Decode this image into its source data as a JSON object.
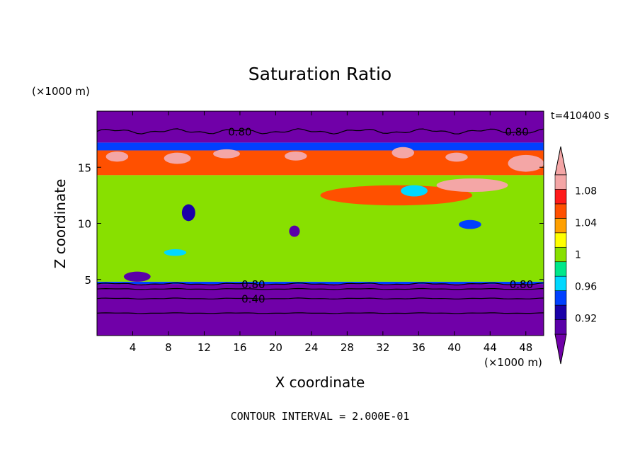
{
  "chart_data": {
    "type": "heatmap",
    "title": "Saturation Ratio",
    "xlabel": "X coordinate",
    "ylabel": "Z coordinate",
    "x_unit": "(×1000 m)",
    "y_unit": "(×1000 m)",
    "time_label": "t=410400 s",
    "footer": "CONTOUR INTERVAL = 2.000E-01",
    "xlim": [
      0,
      50
    ],
    "ylim": [
      0,
      20
    ],
    "x_ticks": [
      4,
      8,
      12,
      16,
      20,
      24,
      28,
      32,
      36,
      40,
      44,
      48
    ],
    "y_ticks": [
      5,
      10,
      15
    ],
    "colorbar": {
      "labels": [
        "1.08",
        "1.04",
        "1",
        "0.96",
        "0.92"
      ],
      "label_values": [
        1.08,
        1.04,
        1.0,
        0.96,
        0.92
      ],
      "levels": [
        0.9,
        0.92,
        0.94,
        0.96,
        0.98,
        1.0,
        1.02,
        1.04,
        1.06,
        1.08,
        1.1
      ],
      "colors": [
        "#5a00a8",
        "#1a00a8",
        "#0040ff",
        "#00d8ff",
        "#00e88a",
        "#88e000",
        "#ffff00",
        "#ffa000",
        "#ff5000",
        "#ff1a1a",
        "#f4a6a6"
      ],
      "below_color": "#7000a8",
      "above_color": "#f4a6a6"
    },
    "contour_labels": [
      {
        "text": "0.80",
        "x": 16,
        "z": 18.2
      },
      {
        "text": "0.80",
        "x": 47,
        "z": 18.2
      },
      {
        "text": "0.80",
        "x": 17.5,
        "z": 4.6
      },
      {
        "text": "0.80",
        "x": 47.5,
        "z": 4.6
      },
      {
        "text": "0.40",
        "x": 17.5,
        "z": 3.3
      }
    ],
    "layers": [
      {
        "z_min": 0,
        "z_max": 4.6,
        "value": 0.5
      },
      {
        "z_min": 4.6,
        "z_max": 4.8,
        "value": 0.94
      },
      {
        "z_min": 4.8,
        "z_max": 14.3,
        "value": 1.0
      },
      {
        "z_min": 14.3,
        "z_max": 16.5,
        "value": 1.06
      },
      {
        "z_min": 16.5,
        "z_max": 17.2,
        "value": 0.94
      },
      {
        "z_min": 17.2,
        "z_max": 20,
        "value": 0.7
      }
    ],
    "features": [
      {
        "x": 1,
        "z": 15.5,
        "w": 2.5,
        "h": 0.9,
        "value": 1.1
      },
      {
        "x": 7.5,
        "z": 15.3,
        "w": 3,
        "h": 1,
        "value": 1.1
      },
      {
        "x": 13,
        "z": 15.8,
        "w": 3,
        "h": 0.8,
        "value": 1.1
      },
      {
        "x": 21,
        "z": 15.6,
        "w": 2.5,
        "h": 0.8,
        "value": 1.1
      },
      {
        "x": 33,
        "z": 15.8,
        "w": 2.5,
        "h": 1,
        "value": 1.1
      },
      {
        "x": 39,
        "z": 15.5,
        "w": 2.5,
        "h": 0.8,
        "value": 1.1
      },
      {
        "x": 46,
        "z": 14.6,
        "w": 4,
        "h": 1.5,
        "value": 1.1
      },
      {
        "x": 25,
        "z": 11.6,
        "w": 17,
        "h": 1.8,
        "value": 1.06
      },
      {
        "x": 38,
        "z": 12.8,
        "w": 8,
        "h": 1.2,
        "value": 1.1
      },
      {
        "x": 9.5,
        "z": 10.2,
        "w": 1.5,
        "h": 1.5,
        "value": 0.92
      },
      {
        "x": 21.5,
        "z": 8.8,
        "w": 1.2,
        "h": 1,
        "value": 0.9
      },
      {
        "x": 7.5,
        "z": 7.1,
        "w": 2.5,
        "h": 0.6,
        "value": 0.96
      },
      {
        "x": 40.5,
        "z": 9.5,
        "w": 2.5,
        "h": 0.8,
        "value": 0.94
      },
      {
        "x": 3,
        "z": 4.8,
        "w": 3,
        "h": 0.9,
        "value": 0.9
      },
      {
        "x": 34,
        "z": 12.4,
        "w": 3,
        "h": 1,
        "value": 0.96
      }
    ]
  }
}
